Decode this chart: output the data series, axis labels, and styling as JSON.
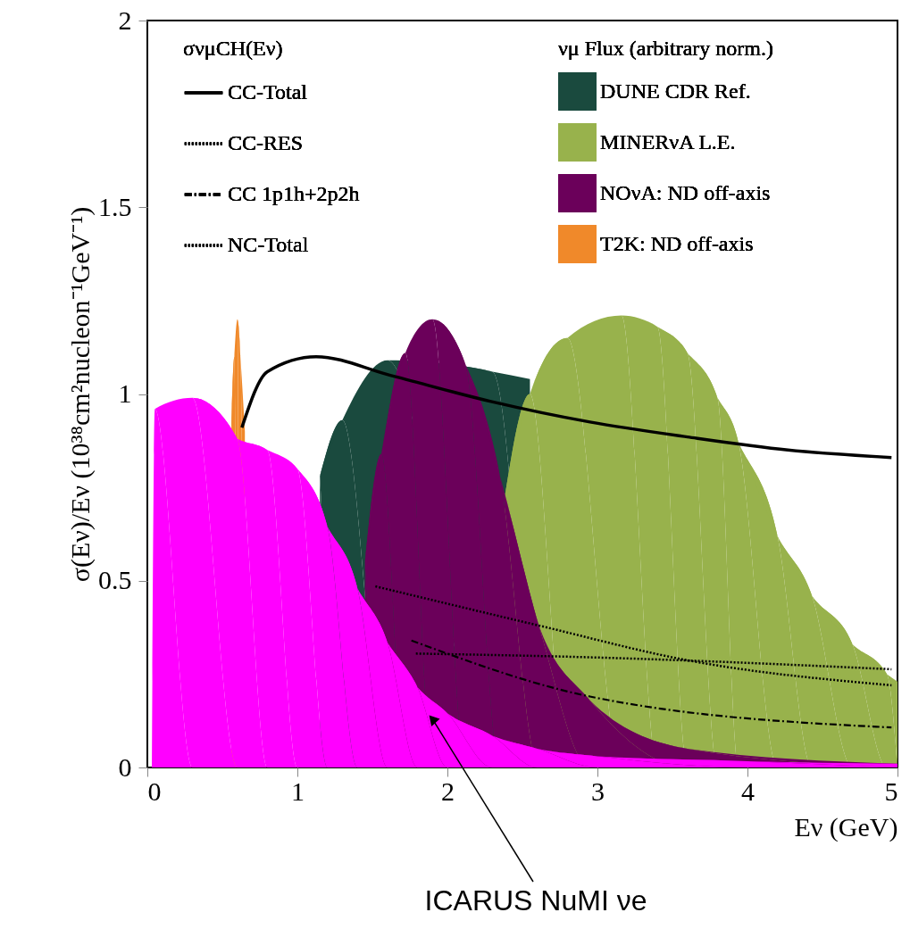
{
  "chart_data": {
    "type": "line",
    "xlabel": "Eν (GeV)",
    "ylabel": "σ(Eν)/Eν  (10³⁸cm²nucleon⁻¹GeV⁻¹)",
    "legend_title": "σνμCH(Eν)",
    "annotations": [
      "νμ Flux (arbitrary norm.)",
      {
        "text": "ICARUS NuMI νe",
        "x": 1.9,
        "y": 0.13
      }
    ],
    "xlim": [
      0,
      5
    ],
    "ylim": [
      0,
      2
    ],
    "xticks": [
      0,
      1,
      2,
      3,
      4,
      5
    ],
    "yticks": [
      0,
      0.5,
      1,
      1.5,
      2
    ],
    "grid": false,
    "legend": "top",
    "series": [
      {
        "name": "DUNE CDR Ref.",
        "type": "area",
        "color": "#1a4a3e",
        "x": [
          1.15,
          1.3,
          1.6,
          2.3,
          2.55
        ],
        "values": [
          0.78,
          0.93,
          1.09,
          1.06,
          1.04
        ]
      },
      {
        "name": "MINERνA L.E.",
        "type": "area",
        "color": "#98b24c",
        "x": [
          2.38,
          2.55,
          2.8,
          3.16,
          3.4,
          3.6,
          3.8,
          3.94,
          4.2,
          4.43,
          4.7,
          4.93,
          5.0
        ],
        "values": [
          0.72,
          1.0,
          1.15,
          1.21,
          1.18,
          1.11,
          0.99,
          0.87,
          0.62,
          0.46,
          0.33,
          0.25,
          0.23
        ]
      },
      {
        "name": "NOνA: ND off-axis",
        "type": "area",
        "color": "#6b005a",
        "x": [
          1.45,
          1.56,
          1.72,
          1.9,
          2.12,
          2.35,
          2.61,
          2.95,
          3.6,
          5.0
        ],
        "values": [
          0.55,
          0.84,
          1.11,
          1.2,
          1.08,
          0.78,
          0.38,
          0.18,
          0.05,
          0.01
        ]
      },
      {
        "name": "T2K: ND off-axis",
        "type": "area",
        "color": "#f0892a",
        "x": [
          0.56,
          0.58,
          0.6,
          0.62,
          0.65
        ],
        "values": [
          0.92,
          1.1,
          1.2,
          1.1,
          0.9
        ]
      },
      {
        "type": "area",
        "color": "#ff00ff",
        "x": [
          0.03,
          0.05,
          0.3,
          0.6,
          0.8,
          1.0,
          1.2,
          1.4,
          1.6,
          1.8,
          2.0,
          2.3,
          2.6,
          3.0,
          4.0,
          5.0
        ],
        "values": [
          0,
          0.96,
          0.99,
          0.88,
          0.85,
          0.8,
          0.645,
          0.48,
          0.335,
          0.215,
          0.145,
          0.085,
          0.05,
          0.03,
          0.017,
          0.01
        ]
      },
      {
        "name": "CC-Total",
        "color": "#000000",
        "line_style": "solid",
        "x": [
          0.63,
          0.8,
          1.125,
          1.62,
          2.29,
          2.95,
          3.6,
          4.27,
          4.96
        ],
        "values": [
          0.91,
          1.06,
          1.1,
          1.05,
          0.98,
          0.925,
          0.885,
          0.85,
          0.83
        ]
      },
      {
        "name": "CC-RES",
        "color": "#000000",
        "line_style": "dotted",
        "x": [
          1.52,
          2.61,
          3.6,
          4.96
        ],
        "values": [
          0.485,
          0.38,
          0.287,
          0.22
        ]
      },
      {
        "name": "CC 1p1h+2p2h",
        "color": "#000000",
        "line_style": "dashed",
        "x": [
          1.76,
          2.95,
          4.96
        ],
        "values": [
          0.34,
          0.19,
          0.107
        ]
      },
      {
        "name": "NC-Total",
        "color": "#000000",
        "line_style": "dotted",
        "x": [
          1.79,
          2.95,
          4.96
        ],
        "values": [
          0.305,
          0.295,
          0.263
        ]
      }
    ]
  }
}
